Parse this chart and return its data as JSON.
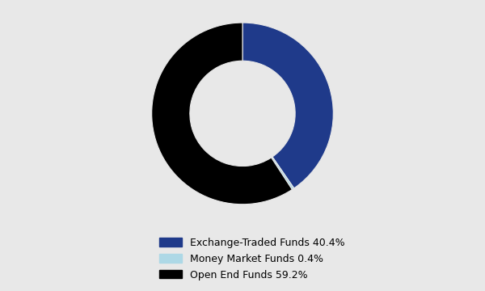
{
  "labels": [
    "Exchange-Traded Funds",
    "Money Market Funds",
    "Open End Funds"
  ],
  "values": [
    40.4,
    0.4,
    59.2
  ],
  "colors": [
    "#1f3a8a",
    "#add8e6",
    "#000000"
  ],
  "legend_labels": [
    "Exchange-Traded Funds 40.4%",
    "Money Market Funds 0.4%",
    "Open End Funds 59.2%"
  ],
  "background_color": "#e8e8e8",
  "donut_width": 0.42,
  "startangle": 90
}
